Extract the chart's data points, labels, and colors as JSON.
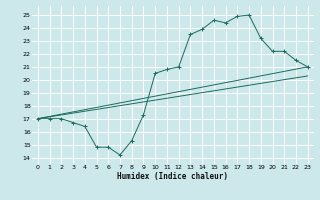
{
  "title": "",
  "xlabel": "Humidex (Indice chaleur)",
  "bg_color": "#cce8ea",
  "grid_color": "#ffffff",
  "line_color": "#1a6b5e",
  "xlim": [
    -0.5,
    23.5
  ],
  "ylim": [
    13.5,
    25.7
  ],
  "xticks": [
    0,
    1,
    2,
    3,
    4,
    5,
    6,
    7,
    8,
    9,
    10,
    11,
    12,
    13,
    14,
    15,
    16,
    17,
    18,
    19,
    20,
    21,
    22,
    23
  ],
  "yticks": [
    14,
    15,
    16,
    17,
    18,
    19,
    20,
    21,
    22,
    23,
    24,
    25
  ],
  "line1_x": [
    0,
    1,
    2,
    3,
    4,
    5,
    6,
    7,
    8,
    9,
    10,
    11,
    12,
    13,
    14,
    15,
    16,
    17,
    18,
    19,
    20,
    21,
    22,
    23
  ],
  "line1_y": [
    17.0,
    17.0,
    17.0,
    16.7,
    16.4,
    14.8,
    14.8,
    14.2,
    15.3,
    17.3,
    20.5,
    20.8,
    21.0,
    23.5,
    23.9,
    24.6,
    24.4,
    24.9,
    25.0,
    23.2,
    22.2,
    22.2,
    21.5,
    21.0
  ],
  "line2_x": [
    0,
    23
  ],
  "line2_y": [
    17.0,
    21.0
  ],
  "line3_x": [
    0,
    23
  ],
  "line3_y": [
    17.0,
    20.3
  ]
}
